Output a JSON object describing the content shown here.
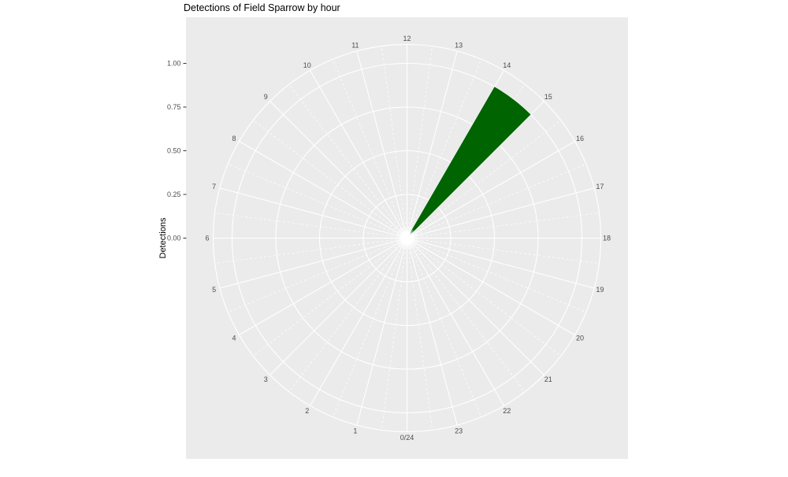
{
  "title": "Detections of Field Sparrow by hour",
  "chart_data": {
    "type": "bar",
    "coord": "polar",
    "title": "Detections of Field Sparrow by hour",
    "ylabel": "Detections",
    "xlabel": "",
    "ylim": [
      0,
      1
    ],
    "y_tick_values": [
      0,
      0.25,
      0.5,
      0.75,
      1
    ],
    "y_tick_labels": [
      "0.00",
      "0.25",
      "0.50",
      "0.75",
      "1.00"
    ],
    "categories": [
      "0/24",
      "1",
      "2",
      "3",
      "4",
      "5",
      "6",
      "7",
      "8",
      "9",
      "10",
      "11",
      "12",
      "13",
      "14",
      "15",
      "16",
      "17",
      "18",
      "19",
      "20",
      "21",
      "22",
      "23"
    ],
    "values": [
      0,
      0,
      0,
      0,
      0,
      0,
      0,
      0,
      0,
      0,
      0,
      0,
      0,
      0,
      1,
      0,
      0,
      0,
      0,
      0,
      0,
      0,
      0,
      0
    ],
    "series": [
      {
        "name": "Detections",
        "hour": 14,
        "value": 1
      }
    ],
    "angle_start": "bottom",
    "angle_direction": "clockwise",
    "grid": "on",
    "legend": "none"
  },
  "colors": {
    "page_bg": "#ffffff",
    "panel_bg": "#ebebeb",
    "grid": "#ffffff",
    "bar": "#006400",
    "axis_text": "#4d4d4d",
    "tick_mark": "#333333",
    "title_text": "#000000"
  }
}
